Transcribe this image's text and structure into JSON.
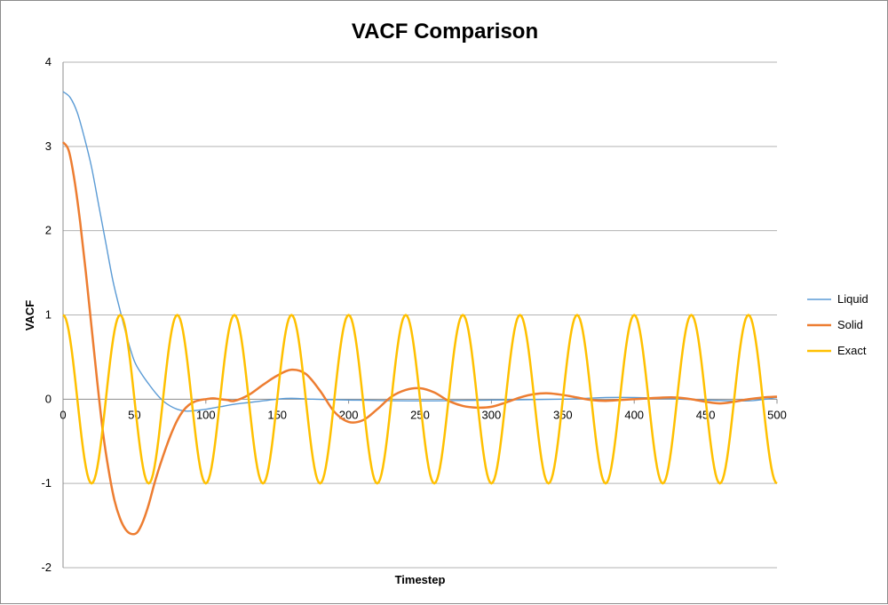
{
  "chart_data": {
    "type": "line",
    "title": "VACF Comparison",
    "xlabel": "Timestep",
    "ylabel": "VACF",
    "xlim": [
      0,
      500
    ],
    "ylim": [
      -2,
      4
    ],
    "x_ticks": [
      "0",
      "50",
      "100",
      "150",
      "200",
      "250",
      "300",
      "350",
      "400",
      "450",
      "500"
    ],
    "y_ticks": [
      "-2",
      "-1",
      "0",
      "1",
      "2",
      "3",
      "4"
    ],
    "grid": "horizontal",
    "legend_position": "right",
    "series": [
      {
        "name": "Liquid",
        "color": "#5b9bd5",
        "x": [
          0,
          5,
          10,
          15,
          20,
          25,
          30,
          35,
          40,
          45,
          50,
          55,
          60,
          65,
          70,
          75,
          80,
          85,
          90,
          95,
          100,
          110,
          120,
          130,
          140,
          150,
          160,
          175,
          200,
          250,
          300,
          350,
          380,
          400,
          420,
          450,
          480,
          500
        ],
        "y": [
          3.65,
          3.58,
          3.4,
          3.1,
          2.75,
          2.3,
          1.85,
          1.4,
          1.05,
          0.72,
          0.45,
          0.3,
          0.18,
          0.07,
          -0.02,
          -0.08,
          -0.12,
          -0.14,
          -0.14,
          -0.13,
          -0.12,
          -0.09,
          -0.06,
          -0.04,
          -0.02,
          0.0,
          0.01,
          0.0,
          -0.01,
          -0.02,
          -0.01,
          0.0,
          0.02,
          0.02,
          0.01,
          -0.01,
          -0.02,
          0.02
        ]
      },
      {
        "name": "Solid",
        "color": "#ed7d31",
        "x": [
          0,
          4,
          8,
          12,
          16,
          20,
          24,
          28,
          32,
          36,
          40,
          44,
          48,
          52,
          56,
          60,
          64,
          68,
          72,
          76,
          80,
          84,
          88,
          92,
          96,
          100,
          105,
          110,
          115,
          120,
          130,
          140,
          150,
          160,
          170,
          180,
          190,
          200,
          210,
          220,
          230,
          240,
          250,
          260,
          270,
          280,
          290,
          300,
          310,
          320,
          330,
          340,
          350,
          360,
          370,
          380,
          390,
          400,
          410,
          420,
          430,
          440,
          450,
          460,
          470,
          480,
          490,
          500
        ],
        "y": [
          3.05,
          2.95,
          2.6,
          2.1,
          1.5,
          0.85,
          0.2,
          -0.4,
          -0.85,
          -1.2,
          -1.42,
          -1.55,
          -1.6,
          -1.58,
          -1.45,
          -1.25,
          -1.0,
          -0.78,
          -0.58,
          -0.4,
          -0.25,
          -0.14,
          -0.07,
          -0.03,
          -0.01,
          0.0,
          0.01,
          0.0,
          -0.01,
          -0.02,
          0.05,
          0.17,
          0.28,
          0.35,
          0.3,
          0.1,
          -0.15,
          -0.27,
          -0.25,
          -0.12,
          0.03,
          0.11,
          0.13,
          0.08,
          -0.02,
          -0.08,
          -0.1,
          -0.09,
          -0.04,
          0.02,
          0.06,
          0.07,
          0.05,
          0.02,
          -0.01,
          -0.02,
          -0.01,
          0.0,
          0.01,
          0.02,
          0.02,
          0.0,
          -0.03,
          -0.05,
          -0.03,
          0.0,
          0.02,
          0.03
        ]
      },
      {
        "name": "Exact",
        "color": "#ffc000",
        "function": "cos",
        "period": 40,
        "amplitude": 1,
        "x_range": [
          0,
          500
        ]
      }
    ]
  }
}
